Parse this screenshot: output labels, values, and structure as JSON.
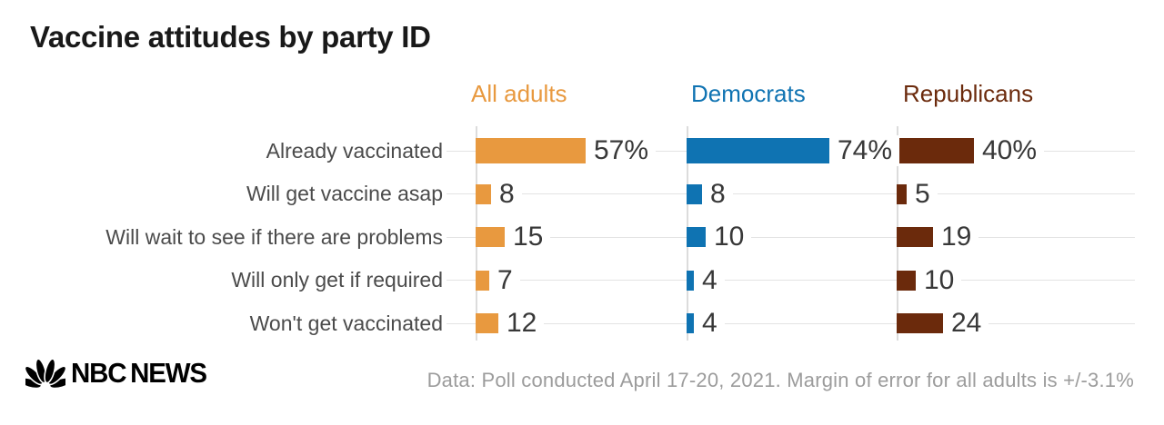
{
  "title": "Vaccine attitudes by party ID",
  "chart_data": {
    "type": "bar",
    "orientation": "horizontal",
    "title": "Vaccine attitudes by party ID",
    "layout_hint": "three small-multiple panels sharing category rows; column headers act as legend; light gray leader lines per row; value labels at bar ends; first row labeled with % unit",
    "categories": [
      "Already vaccinated",
      "Will get vaccine asap",
      "Will wait to see if there are problems",
      "Will only get if required",
      "Won't get vaccinated"
    ],
    "series": [
      {
        "name": "All adults",
        "color": "#E8993F",
        "values": [
          57,
          8,
          15,
          7,
          12
        ],
        "value_labels": [
          "57%",
          "8",
          "15",
          "7",
          "12"
        ]
      },
      {
        "name": "Democrats",
        "color": "#0F73B2",
        "values": [
          74,
          8,
          10,
          4,
          4
        ],
        "value_labels": [
          "74%",
          "8",
          "10",
          "4",
          "4"
        ]
      },
      {
        "name": "Republicans",
        "color": "#6B2A0C",
        "values": [
          40,
          5,
          19,
          10,
          24
        ],
        "value_labels": [
          "40%",
          "5",
          "19",
          "10",
          "24"
        ]
      }
    ],
    "value_unit": "%",
    "xlim": [
      0,
      100
    ],
    "grid": "off"
  },
  "colors": {
    "background": "#FFFFFF",
    "title_text": "#191919",
    "category_text": "#4B4B4B",
    "value_text": "#383838",
    "leader_line": "#E3E3E3",
    "axis_line": "#DCDCDC",
    "source_text": "#9C9C9C",
    "brand": "#000000"
  },
  "footer": {
    "brand_parts": [
      "NBC",
      "NEWS"
    ],
    "brand": "NBC NEWS",
    "logo_icon": "nbc-peacock",
    "source_text": "Data: Poll conducted April 17-20, 2021. Margin of error for all adults is +/-3.1%"
  }
}
